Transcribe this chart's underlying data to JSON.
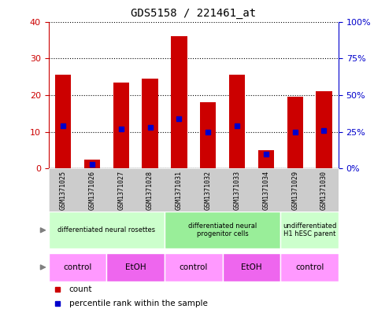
{
  "title": "GDS5158 / 221461_at",
  "samples": [
    "GSM1371025",
    "GSM1371026",
    "GSM1371027",
    "GSM1371028",
    "GSM1371031",
    "GSM1371032",
    "GSM1371033",
    "GSM1371034",
    "GSM1371029",
    "GSM1371030"
  ],
  "counts": [
    25.5,
    2.3,
    23.5,
    24.5,
    36.0,
    18.0,
    25.5,
    5.0,
    19.5,
    21.0
  ],
  "percentile_ranks": [
    29,
    3,
    27,
    28,
    34,
    25,
    29,
    10,
    25,
    26
  ],
  "ylim_left": [
    0,
    40
  ],
  "ylim_right": [
    0,
    100
  ],
  "yticks_left": [
    0,
    10,
    20,
    30,
    40
  ],
  "yticks_right": [
    0,
    25,
    50,
    75,
    100
  ],
  "bar_color": "#cc0000",
  "marker_color": "#0000cc",
  "cell_type_groups": [
    {
      "label": "differentiated neural rosettes",
      "start": 0,
      "end": 4,
      "color": "#ccffcc"
    },
    {
      "label": "differentiated neural\nprogenitor cells",
      "start": 4,
      "end": 8,
      "color": "#99ee99"
    },
    {
      "label": "undifferentiated\nH1 hESC parent",
      "start": 8,
      "end": 10,
      "color": "#ccffcc"
    }
  ],
  "agent_groups": [
    {
      "label": "control",
      "start": 0,
      "end": 2,
      "color": "#ff99ff"
    },
    {
      "label": "EtOH",
      "start": 2,
      "end": 4,
      "color": "#ee66ee"
    },
    {
      "label": "control",
      "start": 4,
      "end": 6,
      "color": "#ff99ff"
    },
    {
      "label": "EtOH",
      "start": 6,
      "end": 8,
      "color": "#ee66ee"
    },
    {
      "label": "control",
      "start": 8,
      "end": 10,
      "color": "#ff99ff"
    }
  ],
  "legend_count_color": "#cc0000",
  "legend_percentile_color": "#0000cc",
  "bg_color": "#ffffff",
  "plot_bg_color": "#ffffff",
  "axis_left_color": "#cc0000",
  "axis_right_color": "#0000cc",
  "sample_row_color": "#cccccc",
  "label_row_color": "#dddddd"
}
